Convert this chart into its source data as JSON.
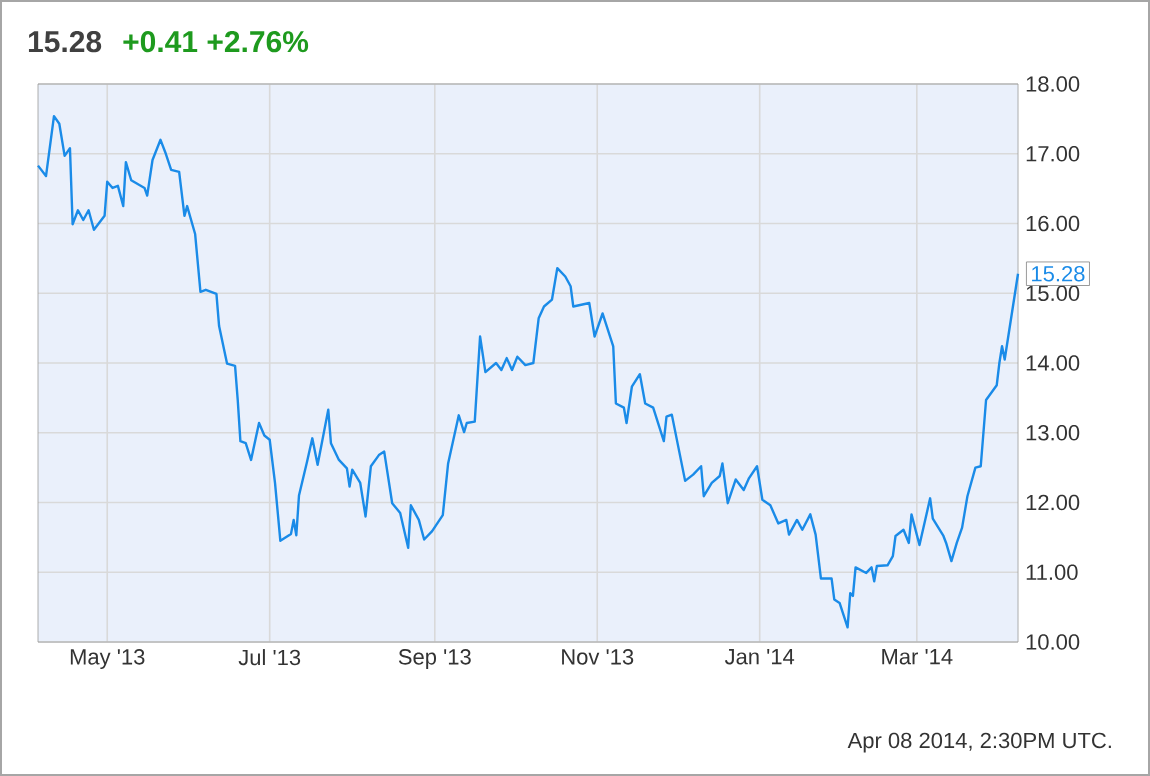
{
  "chart_data": {
    "type": "line",
    "title": "15.28",
    "subtitle": "+0.41 +2.76%",
    "annotations": [
      {
        "text": "15.28",
        "x": "2014-04-08",
        "y": 15.28
      },
      "Apr 08 2014, 2:30PM UTC."
    ],
    "x": [
      "2013-04-05",
      "2013-04-08",
      "2013-04-11",
      "2013-04-13",
      "2013-04-15",
      "2013-04-17",
      "2013-04-18",
      "2013-04-20",
      "2013-04-22",
      "2013-04-24",
      "2013-04-26",
      "2013-04-30",
      "2013-05-01",
      "2013-05-03",
      "2013-05-05",
      "2013-05-07",
      "2013-05-08",
      "2013-05-10",
      "2013-05-15",
      "2013-05-16",
      "2013-05-18",
      "2013-05-21",
      "2013-05-23",
      "2013-05-25",
      "2013-05-28",
      "2013-05-30",
      "2013-05-31",
      "2013-06-03",
      "2013-06-05",
      "2013-06-07",
      "2013-06-11",
      "2013-06-12",
      "2013-06-15",
      "2013-06-18",
      "2013-06-19",
      "2013-06-20",
      "2013-06-22",
      "2013-06-24",
      "2013-06-27",
      "2013-06-29",
      "2013-07-01",
      "2013-07-03",
      "2013-07-05",
      "2013-07-09",
      "2013-07-10",
      "2013-07-11",
      "2013-07-12",
      "2013-07-15",
      "2013-07-17",
      "2013-07-19",
      "2013-07-23",
      "2013-07-24",
      "2013-07-27",
      "2013-07-30",
      "2013-07-31",
      "2013-08-01",
      "2013-08-04",
      "2013-08-06",
      "2013-08-08",
      "2013-08-11",
      "2013-08-13",
      "2013-08-16",
      "2013-08-19",
      "2013-08-22",
      "2013-08-23",
      "2013-08-26",
      "2013-08-28",
      "2013-08-31",
      "2013-09-04",
      "2013-09-06",
      "2013-09-10",
      "2013-09-12",
      "2013-09-13",
      "2013-09-16",
      "2013-09-18",
      "2013-09-20",
      "2013-09-24",
      "2013-09-26",
      "2013-09-28",
      "2013-09-30",
      "2013-10-02",
      "2013-10-05",
      "2013-10-08",
      "2013-10-10",
      "2013-10-12",
      "2013-10-15",
      "2013-10-17",
      "2013-10-20",
      "2013-10-22",
      "2013-10-23",
      "2013-10-29",
      "2013-10-31",
      "2013-11-03",
      "2013-11-07",
      "2013-11-08",
      "2013-11-11",
      "2013-11-12",
      "2013-11-14",
      "2013-11-17",
      "2013-11-19",
      "2013-11-22",
      "2013-11-26",
      "2013-11-27",
      "2013-11-29",
      "2013-12-04",
      "2013-12-07",
      "2013-12-10",
      "2013-12-11",
      "2013-12-14",
      "2013-12-17",
      "2013-12-18",
      "2013-12-20",
      "2013-12-23",
      "2013-12-26",
      "2013-12-28",
      "2013-12-31",
      "2014-01-02",
      "2014-01-05",
      "2014-01-08",
      "2014-01-11",
      "2014-01-12",
      "2014-01-15",
      "2014-01-17",
      "2014-01-20",
      "2014-01-22",
      "2014-01-24",
      "2014-01-28",
      "2014-01-29",
      "2014-01-31",
      "2014-02-03",
      "2014-02-04",
      "2014-02-05",
      "2014-02-06",
      "2014-02-10",
      "2014-02-12",
      "2014-02-13",
      "2014-02-14",
      "2014-02-18",
      "2014-02-20",
      "2014-02-21",
      "2014-02-24",
      "2014-02-26",
      "2014-02-27",
      "2014-03-02",
      "2014-03-06",
      "2014-03-07",
      "2014-03-11",
      "2014-03-12",
      "2014-03-14",
      "2014-03-16",
      "2014-03-18",
      "2014-03-20",
      "2014-03-23",
      "2014-03-25",
      "2014-03-27",
      "2014-03-31",
      "2014-04-01",
      "2014-04-02",
      "2014-04-03",
      "2014-04-08"
    ],
    "values": [
      16.83,
      16.68,
      17.54,
      17.43,
      16.97,
      17.08,
      15.99,
      16.19,
      16.05,
      16.19,
      15.91,
      16.11,
      16.6,
      16.51,
      16.54,
      16.25,
      16.88,
      16.62,
      16.51,
      16.4,
      16.91,
      17.2,
      17.0,
      16.77,
      16.74,
      16.11,
      16.25,
      15.85,
      15.02,
      15.05,
      14.99,
      14.53,
      13.99,
      13.96,
      13.47,
      12.88,
      12.85,
      12.61,
      13.14,
      12.96,
      12.9,
      12.28,
      11.45,
      11.55,
      11.75,
      11.53,
      12.1,
      12.58,
      12.92,
      12.54,
      13.33,
      12.85,
      12.61,
      12.49,
      12.23,
      12.47,
      12.28,
      11.8,
      12.52,
      12.68,
      12.73,
      11.99,
      11.85,
      11.35,
      11.96,
      11.75,
      11.47,
      11.59,
      11.82,
      12.56,
      13.25,
      13.01,
      13.14,
      13.16,
      14.38,
      13.87,
      14.0,
      13.9,
      14.07,
      13.9,
      14.09,
      13.97,
      14.0,
      14.64,
      14.81,
      14.91,
      15.36,
      15.24,
      15.1,
      14.81,
      14.86,
      14.38,
      14.71,
      14.24,
      13.42,
      13.36,
      13.14,
      13.66,
      13.84,
      13.42,
      13.36,
      12.88,
      13.23,
      13.26,
      12.31,
      12.4,
      12.52,
      12.09,
      12.28,
      12.38,
      12.56,
      11.99,
      12.33,
      12.18,
      12.35,
      12.52,
      12.04,
      11.96,
      11.7,
      11.75,
      11.54,
      11.75,
      11.61,
      11.83,
      11.54,
      10.91,
      10.91,
      10.61,
      10.56,
      10.21,
      10.7,
      10.66,
      11.07,
      10.99,
      11.07,
      10.87,
      11.09,
      11.1,
      11.23,
      11.52,
      11.61,
      11.42,
      11.83,
      11.39,
      12.06,
      11.77,
      11.52,
      11.42,
      11.16,
      11.42,
      11.64,
      12.09,
      12.5,
      12.52,
      13.47,
      13.68,
      14.0,
      14.24,
      14.05,
      15.28
    ],
    "color": "#1a8be8",
    "xlim": [
      "2013-04-05",
      "2014-04-08"
    ],
    "xticks": [
      {
        "value": "2013-05-01",
        "label": "May '13"
      },
      {
        "value": "2013-07-01",
        "label": "Jul '13"
      },
      {
        "value": "2013-09-01",
        "label": "Sep '13"
      },
      {
        "value": "2013-11-01",
        "label": "Nov '13"
      },
      {
        "value": "2014-01-01",
        "label": "Jan '14"
      },
      {
        "value": "2014-03-01",
        "label": "Mar '14"
      }
    ],
    "ylim": [
      10,
      18
    ],
    "yticks": [
      {
        "value": 10,
        "label": "10.00"
      },
      {
        "value": 11,
        "label": "11.00"
      },
      {
        "value": 12,
        "label": "12.00"
      },
      {
        "value": 13,
        "label": "13.00"
      },
      {
        "value": 14,
        "label": "14.00"
      },
      {
        "value": 15,
        "label": "15.00"
      },
      {
        "value": 16,
        "label": "16.00"
      },
      {
        "value": 17,
        "label": "17.00"
      },
      {
        "value": 18,
        "label": "18.00"
      }
    ],
    "grid": true
  }
}
